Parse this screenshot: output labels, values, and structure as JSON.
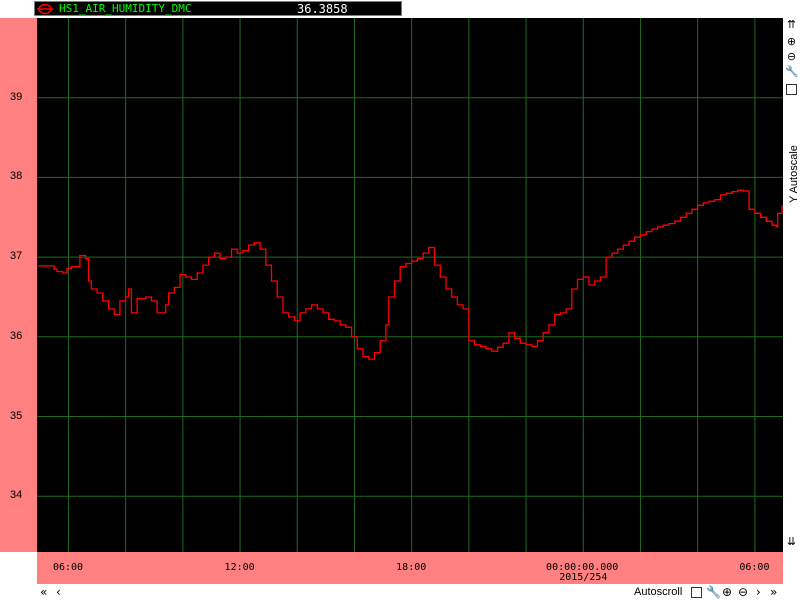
{
  "legend": {
    "series_name": "HS1_AIR_HUMIDITY_DMC",
    "current_value": "36.3858",
    "color": "#ff0000"
  },
  "right_panel": {
    "autoscale_label": "Y Autoscale"
  },
  "bottom_bar": {
    "autoscroll_label": "Autoscroll"
  },
  "chart_data": {
    "type": "line",
    "series": [
      {
        "name": "HS1_AIR_HUMIDITY_DMC",
        "color": "#ff0000"
      }
    ],
    "ylim": [
      33.3,
      40.0
    ],
    "y_ticks": [
      34,
      35,
      36,
      37,
      38,
      39
    ],
    "x_ticks": [
      "06:00",
      "12:00",
      "18:00",
      "00:00:00.000",
      "06:00"
    ],
    "x_date_label": "2015/254",
    "grid": true,
    "x_hours": [
      4.95,
      5.5,
      5.6,
      5.8,
      5.95,
      6.1,
      6.4,
      6.6,
      6.7,
      6.8,
      7.0,
      7.2,
      7.4,
      7.6,
      7.8,
      8.0,
      8.1,
      8.2,
      8.4,
      8.7,
      8.9,
      9.1,
      9.4,
      9.5,
      9.7,
      9.9,
      10.1,
      10.3,
      10.5,
      10.7,
      10.9,
      11.1,
      11.3,
      11.5,
      11.7,
      11.9,
      12.1,
      12.3,
      12.5,
      12.7,
      12.9,
      13.1,
      13.3,
      13.5,
      13.7,
      13.9,
      14.1,
      14.3,
      14.5,
      14.7,
      14.9,
      15.1,
      15.3,
      15.5,
      15.7,
      15.9,
      16.1,
      16.3,
      16.5,
      16.7,
      16.9,
      17.1,
      17.2,
      17.4,
      17.6,
      17.8,
      18.0,
      18.2,
      18.4,
      18.6,
      18.8,
      19.0,
      19.2,
      19.4,
      19.6,
      19.8,
      20.0,
      20.2,
      20.4,
      20.6,
      20.8,
      21.0,
      21.2,
      21.4,
      21.6,
      21.8,
      22.0,
      22.2,
      22.4,
      22.6,
      22.8,
      23.0,
      23.2,
      23.4,
      23.6,
      23.8,
      24.0,
      24.2,
      24.4,
      24.6,
      24.8,
      25.0,
      25.2,
      25.4,
      25.6,
      25.8,
      26.0,
      26.2,
      26.4,
      26.6,
      26.8,
      27.0,
      27.2,
      27.4,
      27.6,
      27.8,
      28.0,
      28.2,
      28.4,
      28.6,
      28.8,
      29.0,
      29.2,
      29.4,
      29.6,
      29.8,
      30.0,
      30.2,
      30.4,
      30.6,
      30.75,
      30.8,
      30.95
    ],
    "values": [
      36.89,
      36.85,
      36.82,
      36.8,
      36.86,
      36.88,
      37.02,
      36.98,
      36.7,
      36.6,
      36.55,
      36.45,
      36.35,
      36.28,
      36.45,
      36.5,
      36.6,
      36.3,
      36.48,
      36.5,
      36.45,
      36.3,
      36.4,
      36.55,
      36.62,
      36.78,
      36.75,
      36.72,
      36.8,
      36.9,
      37.0,
      37.05,
      36.98,
      37.0,
      37.1,
      37.05,
      37.08,
      37.15,
      37.18,
      37.1,
      36.9,
      36.7,
      36.5,
      36.3,
      36.25,
      36.2,
      36.3,
      36.35,
      36.4,
      36.35,
      36.3,
      36.22,
      36.2,
      36.15,
      36.12,
      36.0,
      35.85,
      35.75,
      35.72,
      35.8,
      35.95,
      36.15,
      36.5,
      36.7,
      36.88,
      36.92,
      36.95,
      36.98,
      37.05,
      37.12,
      36.9,
      36.75,
      36.6,
      36.5,
      36.4,
      36.35,
      35.95,
      35.9,
      35.88,
      35.85,
      35.82,
      35.87,
      35.92,
      36.05,
      35.98,
      35.92,
      35.9,
      35.88,
      35.95,
      36.05,
      36.15,
      36.28,
      36.3,
      36.35,
      36.6,
      36.72,
      36.75,
      36.65,
      36.7,
      36.75,
      37.0,
      37.05,
      37.1,
      37.15,
      37.2,
      37.25,
      37.28,
      37.32,
      37.35,
      37.38,
      37.4,
      37.42,
      37.45,
      37.5,
      37.55,
      37.6,
      37.65,
      37.68,
      37.7,
      37.72,
      37.78,
      37.8,
      37.82,
      37.84,
      37.83,
      37.6,
      37.55,
      37.5,
      37.45,
      37.4,
      37.38,
      37.55,
      37.65
    ]
  }
}
